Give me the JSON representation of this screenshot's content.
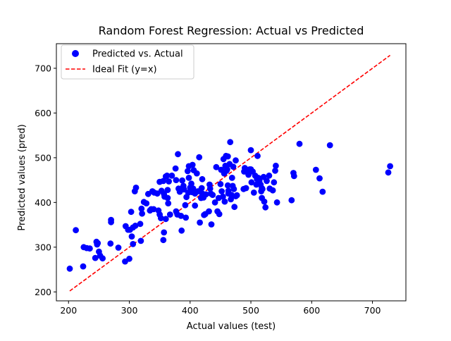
{
  "chart_data": {
    "type": "scatter",
    "title": "Random Forest Regression: Actual vs Predicted",
    "xlabel": "Actual values (test)",
    "ylabel": "Predicted values (pred)",
    "xlim": [
      180,
      755
    ],
    "ylim": [
      180,
      755
    ],
    "xticks": [
      200,
      300,
      400,
      500,
      600,
      700
    ],
    "yticks": [
      200,
      300,
      400,
      500,
      600,
      700
    ],
    "grid": false,
    "legend_position": "top-left",
    "series": [
      {
        "name": "Predicted vs. Actual",
        "kind": "scatter",
        "color": "#0000ff",
        "points": [
          [
            202,
            252
          ],
          [
            212,
            338
          ],
          [
            224,
            257
          ],
          [
            225,
            300
          ],
          [
            230,
            298
          ],
          [
            235,
            297
          ],
          [
            244,
            276
          ],
          [
            246,
            312
          ],
          [
            247,
            306
          ],
          [
            248,
            309
          ],
          [
            250,
            290
          ],
          [
            252,
            281
          ],
          [
            256,
            275
          ],
          [
            269,
            308
          ],
          [
            270,
            356
          ],
          [
            270,
            361
          ],
          [
            282,
            299
          ],
          [
            293,
            268
          ],
          [
            294,
            347
          ],
          [
            298,
            339
          ],
          [
            300,
            274
          ],
          [
            301,
            339
          ],
          [
            303,
            379
          ],
          [
            304,
            324
          ],
          [
            306,
            307
          ],
          [
            306,
            344
          ],
          [
            309,
            425
          ],
          [
            310,
            348
          ],
          [
            311,
            433
          ],
          [
            318,
            352
          ],
          [
            319,
            314
          ],
          [
            320,
            386
          ],
          [
            321,
            375
          ],
          [
            324,
            401
          ],
          [
            328,
            398
          ],
          [
            331,
            419
          ],
          [
            334,
            382
          ],
          [
            336,
            385
          ],
          [
            338,
            425
          ],
          [
            340,
            385
          ],
          [
            341,
            422
          ],
          [
            346,
            420
          ],
          [
            348,
            382
          ],
          [
            350,
            373
          ],
          [
            350,
            446
          ],
          [
            352,
            365
          ],
          [
            353,
            426
          ],
          [
            356,
            448
          ],
          [
            356,
            316
          ],
          [
            357,
            419
          ],
          [
            357,
            333
          ],
          [
            358,
            413
          ],
          [
            360,
            458
          ],
          [
            360,
            363
          ],
          [
            362,
            460
          ],
          [
            363,
            428
          ],
          [
            363,
            410
          ],
          [
            364,
            398
          ],
          [
            365,
            447
          ],
          [
            367,
            373
          ],
          [
            370,
            460
          ],
          [
            376,
            476
          ],
          [
            377,
            380
          ],
          [
            377,
            450
          ],
          [
            379,
            373
          ],
          [
            380,
            508
          ],
          [
            381,
            431
          ],
          [
            383,
            424
          ],
          [
            385,
            370
          ],
          [
            386,
            337
          ],
          [
            387,
            449
          ],
          [
            389,
            437
          ],
          [
            390,
            429
          ],
          [
            392,
            394
          ],
          [
            393,
            366
          ],
          [
            394,
            412
          ],
          [
            396,
            470
          ],
          [
            397,
            422
          ],
          [
            398,
            455
          ],
          [
            398,
            481
          ],
          [
            400,
            433
          ],
          [
            402,
            442
          ],
          [
            403,
            423
          ],
          [
            404,
            484
          ],
          [
            405,
            431
          ],
          [
            406,
            472
          ],
          [
            408,
            420
          ],
          [
            408,
            393
          ],
          [
            411,
            465
          ],
          [
            413,
            425
          ],
          [
            415,
            501
          ],
          [
            416,
            355
          ],
          [
            418,
            410
          ],
          [
            419,
            432
          ],
          [
            420,
            452
          ],
          [
            420,
            420
          ],
          [
            422,
            411
          ],
          [
            423,
            372
          ],
          [
            425,
            374
          ],
          [
            426,
            418
          ],
          [
            431,
            380
          ],
          [
            432,
            440
          ],
          [
            433,
            431
          ],
          [
            434,
            420
          ],
          [
            435,
            351
          ],
          [
            437,
            417
          ],
          [
            441,
            400
          ],
          [
            443,
            479
          ],
          [
            445,
            380
          ],
          [
            447,
            410
          ],
          [
            448,
            374
          ],
          [
            450,
            441
          ],
          [
            451,
            473
          ],
          [
            452,
            425
          ],
          [
            454,
            413
          ],
          [
            455,
            497
          ],
          [
            456,
            465
          ],
          [
            457,
            402
          ],
          [
            458,
            482
          ],
          [
            459,
            504
          ],
          [
            460,
            471
          ],
          [
            461,
            474
          ],
          [
            462,
            438
          ],
          [
            462,
            503
          ],
          [
            463,
            426
          ],
          [
            463,
            420
          ],
          [
            465,
            486
          ],
          [
            466,
            535
          ],
          [
            467,
            407
          ],
          [
            468,
            417
          ],
          [
            469,
            455
          ],
          [
            470,
            437
          ],
          [
            471,
            480
          ],
          [
            472,
            430
          ],
          [
            473,
            390
          ],
          [
            475,
            494
          ],
          [
            475,
            414
          ],
          [
            477,
            416
          ],
          [
            488,
            430
          ],
          [
            489,
            469
          ],
          [
            490,
            477
          ],
          [
            492,
            432
          ],
          [
            495,
            467
          ],
          [
            496,
            462
          ],
          [
            498,
            474
          ],
          [
            500,
            517
          ],
          [
            500,
            474
          ],
          [
            501,
            445
          ],
          [
            503,
            469
          ],
          [
            505,
            422
          ],
          [
            507,
            460
          ],
          [
            509,
            440
          ],
          [
            510,
            452
          ],
          [
            511,
            504
          ],
          [
            512,
            455
          ],
          [
            514,
            448
          ],
          [
            516,
            440
          ],
          [
            517,
            425
          ],
          [
            518,
            410
          ],
          [
            518,
            432
          ],
          [
            519,
            430
          ],
          [
            521,
            457
          ],
          [
            522,
            402
          ],
          [
            524,
            389
          ],
          [
            526,
            448
          ],
          [
            530,
            460
          ],
          [
            531,
            431
          ],
          [
            536,
            427
          ],
          [
            538,
            445
          ],
          [
            540,
            471
          ],
          [
            541,
            482
          ],
          [
            543,
            400
          ],
          [
            567,
            405
          ],
          [
            570,
            466
          ],
          [
            571,
            459
          ],
          [
            580,
            531
          ],
          [
            607,
            473
          ],
          [
            613,
            454
          ],
          [
            618,
            424
          ],
          [
            630,
            528
          ],
          [
            726,
            467
          ],
          [
            729,
            481
          ]
        ]
      },
      {
        "name": "Ideal Fit (y=x)",
        "kind": "line",
        "color": "#ff0000",
        "style": "dashed",
        "points": [
          [
            202,
            202
          ],
          [
            729,
            729
          ]
        ]
      }
    ]
  }
}
